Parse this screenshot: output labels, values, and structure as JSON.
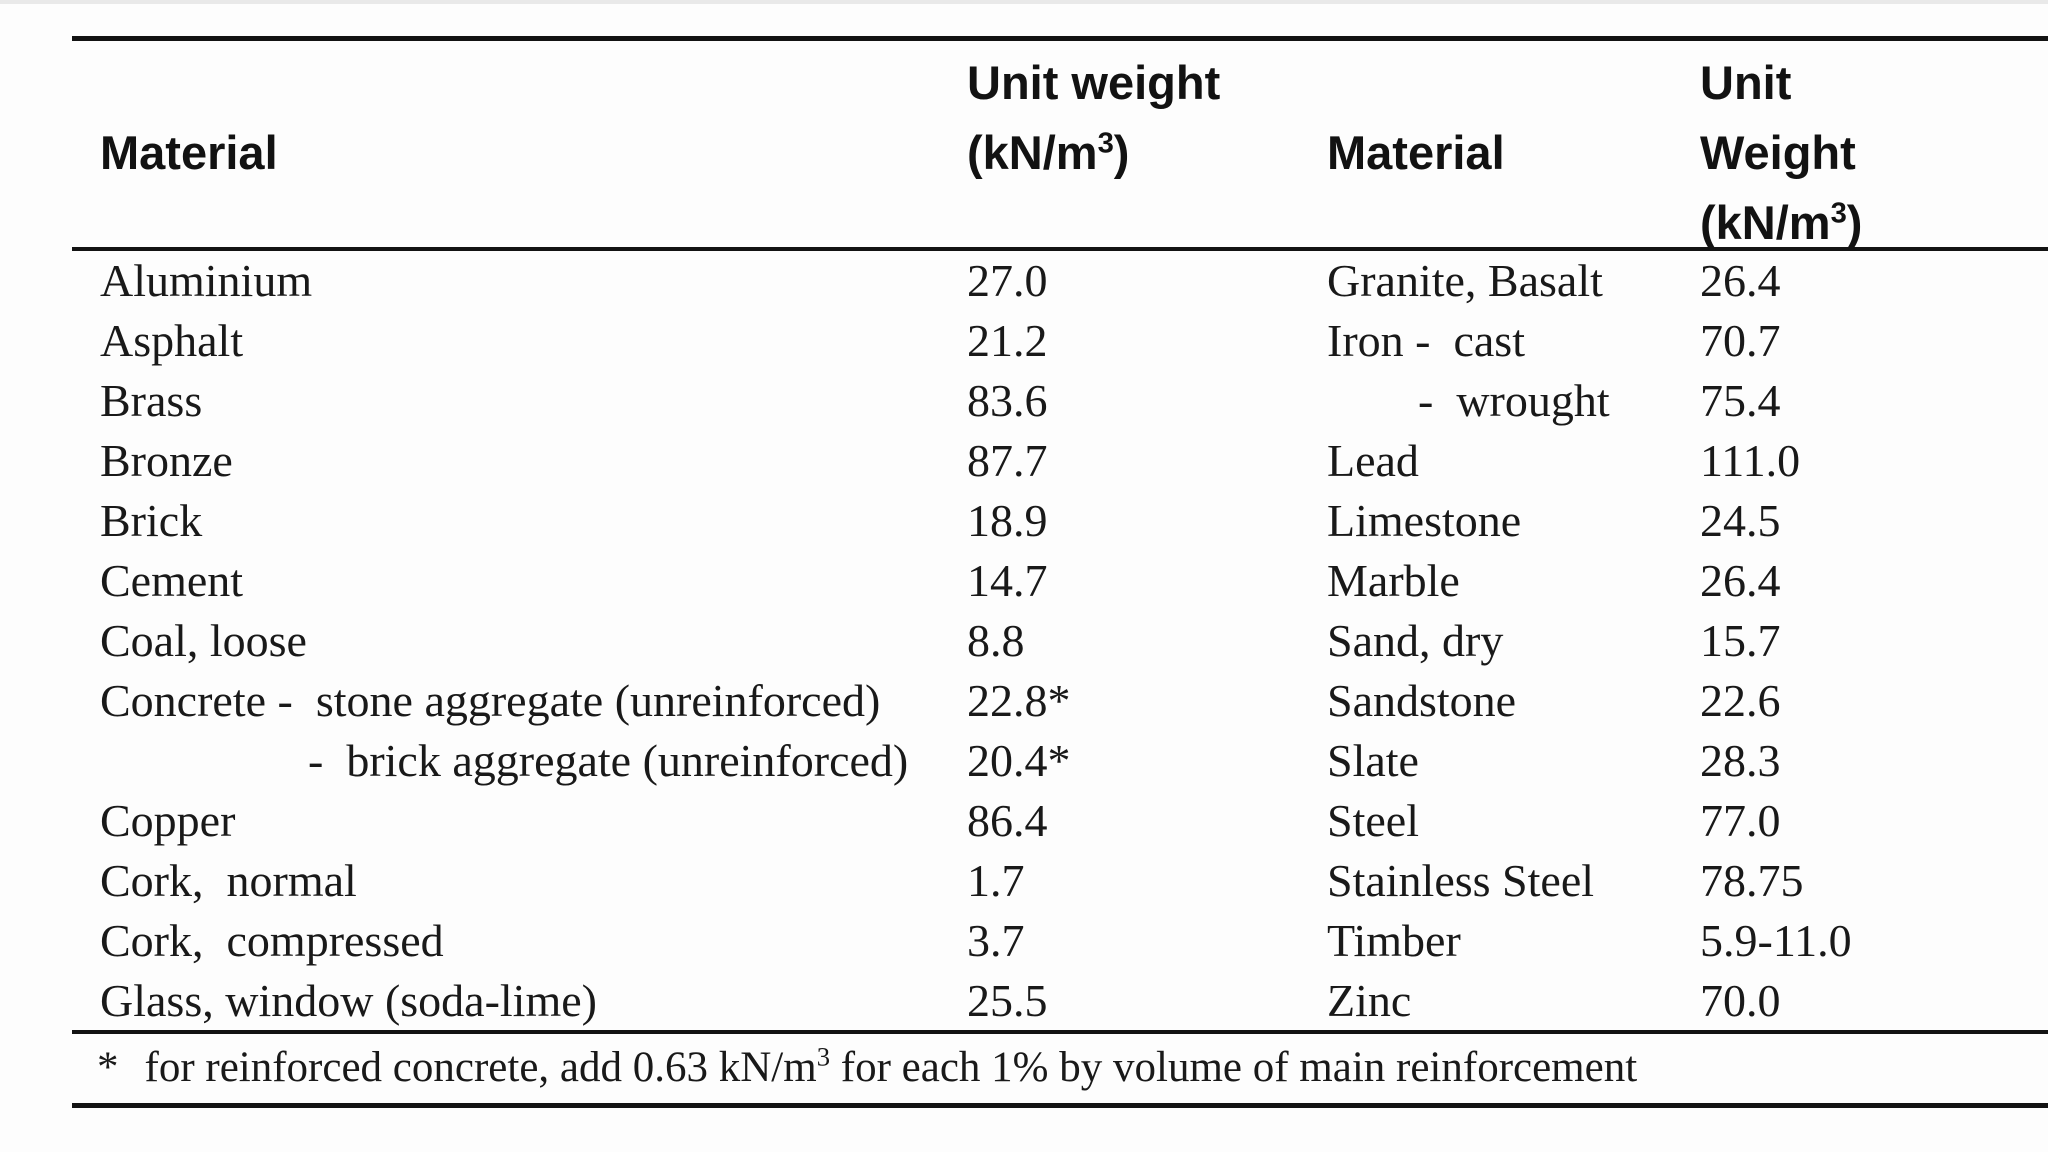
{
  "palette": {
    "background": "#fdfdfd",
    "rule_color": "#131313",
    "text_color": "#191919"
  },
  "table": {
    "header": {
      "col1": "Material",
      "col2": {
        "line1": "Unit weight",
        "line2_pre": "(kN/m",
        "sup": "3",
        "line2_post": ")"
      },
      "col3": "Material",
      "col4": {
        "line1": "Unit",
        "line2": "Weight",
        "line3_pre": "(kN/m",
        "sup": "3",
        "line3_post": ")"
      }
    },
    "rows": [
      [
        "Aluminium",
        "27.0",
        "Granite, Basalt",
        "26.4"
      ],
      [
        "Asphalt",
        "21.2",
        "Iron -  cast",
        "70.7"
      ],
      [
        "Brass",
        "83.6",
        "-  wrought",
        "75.4"
      ],
      [
        "Bronze",
        "87.7",
        "Lead",
        "111.0"
      ],
      [
        "Brick",
        "18.9",
        "Limestone",
        "24.5"
      ],
      [
        "Cement",
        "14.7",
        "Marble",
        "26.4"
      ],
      [
        "Coal, loose",
        "8.8",
        "Sand, dry",
        "15.7"
      ],
      [
        "Concrete -  stone aggregate (unreinforced)",
        "22.8*",
        "Sandstone",
        "22.6"
      ],
      [
        "-  brick aggregate (unreinforced)",
        "20.4*",
        "Slate",
        "28.3"
      ],
      [
        "Copper",
        "86.4",
        "Steel",
        "77.0"
      ],
      [
        "Cork,  normal",
        "1.7",
        "Stainless Steel",
        "78.75"
      ],
      [
        "Cork,  compressed",
        "3.7",
        "Timber",
        "5.9-11.0"
      ],
      [
        "Glass, window (soda-lime)",
        "25.5",
        "Zinc",
        "70.0"
      ]
    ],
    "footnote": {
      "marker": "*",
      "pre": "for reinforced concrete, add 0.63 kN/m",
      "sup": "3",
      "post": " for each 1% by volume of main reinforcement"
    }
  }
}
